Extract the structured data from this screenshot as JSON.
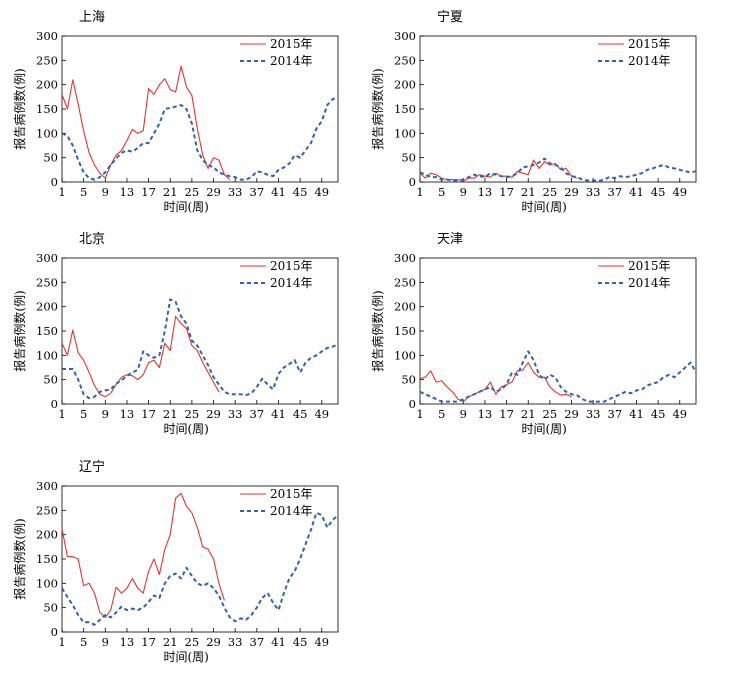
{
  "figure": {
    "ylabel": "报告病例数(例)",
    "xlabel": "时间(周)"
  },
  "legend": {
    "s2015": {
      "label": "2015年",
      "color": "#e8332e"
    },
    "s2014": {
      "label": "2014年",
      "color": "#2e62b4"
    }
  },
  "chart_data": [
    {
      "type": "line",
      "title": "上海",
      "xlabel": "时间(周)",
      "ylabel": "报告病例数(例)",
      "xlim": [
        1,
        52
      ],
      "ylim": [
        0,
        300
      ],
      "xticks": [
        1,
        5,
        9,
        13,
        17,
        21,
        25,
        29,
        33,
        37,
        41,
        45,
        49
      ],
      "yticks": [
        0,
        50,
        100,
        150,
        200,
        250,
        300
      ],
      "series": [
        {
          "name": "2015年",
          "x_start": 1,
          "values": [
            180,
            150,
            210,
            160,
            105,
            60,
            35,
            18,
            8,
            35,
            55,
            65,
            85,
            108,
            100,
            105,
            192,
            180,
            200,
            212,
            190,
            185,
            238,
            195,
            178,
            110,
            55,
            28,
            50,
            45,
            15,
            5
          ]
        },
        {
          "name": "2014年",
          "x_start": 1,
          "values": [
            100,
            95,
            75,
            45,
            20,
            8,
            5,
            10,
            20,
            35,
            48,
            60,
            65,
            62,
            70,
            80,
            80,
            100,
            120,
            150,
            152,
            155,
            158,
            150,
            120,
            65,
            45,
            35,
            30,
            20,
            15,
            12,
            10,
            5,
            5,
            10,
            22,
            20,
            15,
            12,
            25,
            30,
            38,
            55,
            50,
            65,
            80,
            110,
            125,
            158,
            170,
            175
          ]
        }
      ]
    },
    {
      "type": "line",
      "title": "宁夏",
      "xlabel": "时间(周)",
      "ylabel": "报告病例数(例)",
      "xlim": [
        1,
        52
      ],
      "ylim": [
        0,
        300
      ],
      "xticks": [
        1,
        5,
        9,
        13,
        17,
        21,
        25,
        29,
        33,
        37,
        41,
        45,
        49
      ],
      "yticks": [
        0,
        50,
        100,
        150,
        200,
        250,
        300
      ],
      "series": [
        {
          "name": "2015年",
          "x_start": 1,
          "values": [
            18,
            8,
            18,
            15,
            8,
            5,
            5,
            5,
            2,
            8,
            8,
            15,
            12,
            10,
            18,
            12,
            12,
            10,
            22,
            18,
            15,
            45,
            28,
            42,
            35,
            38,
            25,
            28,
            12,
            8
          ]
        },
        {
          "name": "2014年",
          "x_start": 1,
          "values": [
            20,
            15,
            10,
            10,
            5,
            5,
            3,
            2,
            5,
            10,
            15,
            12,
            10,
            18,
            15,
            12,
            10,
            12,
            18,
            30,
            32,
            35,
            40,
            48,
            38,
            35,
            30,
            18,
            12,
            10,
            5,
            3,
            3,
            2,
            5,
            10,
            8,
            12,
            10,
            12,
            15,
            18,
            25,
            28,
            32,
            35,
            30,
            28,
            25,
            22,
            20,
            22
          ]
        }
      ]
    },
    {
      "type": "line",
      "title": "北京",
      "xlabel": "时间(周)",
      "ylabel": "报告病例数(例)",
      "xlim": [
        1,
        52
      ],
      "ylim": [
        0,
        300
      ],
      "xticks": [
        1,
        5,
        9,
        13,
        17,
        21,
        25,
        29,
        33,
        37,
        41,
        45,
        49
      ],
      "yticks": [
        0,
        50,
        100,
        150,
        200,
        250,
        300
      ],
      "series": [
        {
          "name": "2015年",
          "x_start": 1,
          "values": [
            125,
            100,
            152,
            105,
            90,
            65,
            38,
            20,
            15,
            22,
            40,
            55,
            60,
            58,
            50,
            60,
            85,
            90,
            75,
            125,
            110,
            180,
            165,
            155,
            120,
            110,
            85,
            65,
            45,
            25
          ]
        },
        {
          "name": "2014年",
          "x_start": 1,
          "values": [
            72,
            72,
            72,
            50,
            20,
            12,
            15,
            25,
            28,
            30,
            42,
            48,
            58,
            65,
            70,
            108,
            100,
            95,
            100,
            150,
            215,
            210,
            180,
            165,
            130,
            120,
            100,
            80,
            55,
            40,
            25,
            20,
            20,
            20,
            18,
            22,
            35,
            52,
            40,
            30,
            62,
            75,
            82,
            90,
            65,
            85,
            95,
            100,
            108,
            115,
            118,
            122
          ]
        }
      ]
    },
    {
      "type": "line",
      "title": "天津",
      "xlabel": "时间(周)",
      "ylabel": "报告病例数(例)",
      "xlim": [
        1,
        52
      ],
      "ylim": [
        0,
        300
      ],
      "xticks": [
        1,
        5,
        9,
        13,
        17,
        21,
        25,
        29,
        33,
        37,
        41,
        45,
        49
      ],
      "yticks": [
        0,
        50,
        100,
        150,
        200,
        250,
        300
      ],
      "series": [
        {
          "name": "2015年",
          "x_start": 1,
          "values": [
            52,
            55,
            68,
            45,
            48,
            35,
            25,
            10,
            5,
            15,
            20,
            25,
            30,
            45,
            20,
            35,
            40,
            45,
            68,
            70,
            85,
            65,
            55,
            55,
            35,
            25,
            18,
            20,
            15
          ]
        },
        {
          "name": "2014年",
          "x_start": 1,
          "values": [
            25,
            20,
            15,
            10,
            5,
            5,
            5,
            5,
            10,
            15,
            20,
            25,
            30,
            35,
            25,
            30,
            40,
            65,
            60,
            85,
            108,
            90,
            60,
            50,
            60,
            55,
            35,
            25,
            20,
            18,
            10,
            5,
            5,
            5,
            5,
            10,
            15,
            20,
            25,
            22,
            28,
            30,
            38,
            42,
            45,
            55,
            60,
            55,
            65,
            75,
            85,
            65
          ]
        }
      ]
    },
    {
      "type": "line",
      "title": "辽宁",
      "xlabel": "时间(周)",
      "ylabel": "报告病例数(例)",
      "xlim": [
        1,
        52
      ],
      "ylim": [
        0,
        300
      ],
      "xticks": [
        1,
        5,
        9,
        13,
        17,
        21,
        25,
        29,
        33,
        37,
        41,
        45,
        49
      ],
      "yticks": [
        0,
        50,
        100,
        150,
        200,
        250,
        300
      ],
      "series": [
        {
          "name": "2015年",
          "x_start": 1,
          "values": [
            212,
            155,
            155,
            150,
            95,
            100,
            80,
            40,
            30,
            45,
            92,
            80,
            90,
            110,
            90,
            80,
            125,
            150,
            118,
            170,
            200,
            275,
            285,
            258,
            245,
            215,
            175,
            170,
            150,
            100,
            65
          ]
        },
        {
          "name": "2014年",
          "x_start": 1,
          "values": [
            90,
            72,
            55,
            35,
            20,
            20,
            15,
            25,
            35,
            30,
            40,
            52,
            45,
            48,
            45,
            50,
            62,
            75,
            70,
            100,
            115,
            120,
            110,
            132,
            115,
            100,
            95,
            100,
            90,
            75,
            50,
            30,
            22,
            28,
            25,
            35,
            50,
            70,
            80,
            60,
            45,
            80,
            110,
            125,
            150,
            180,
            210,
            245,
            240,
            215,
            230,
            240
          ]
        }
      ]
    }
  ]
}
